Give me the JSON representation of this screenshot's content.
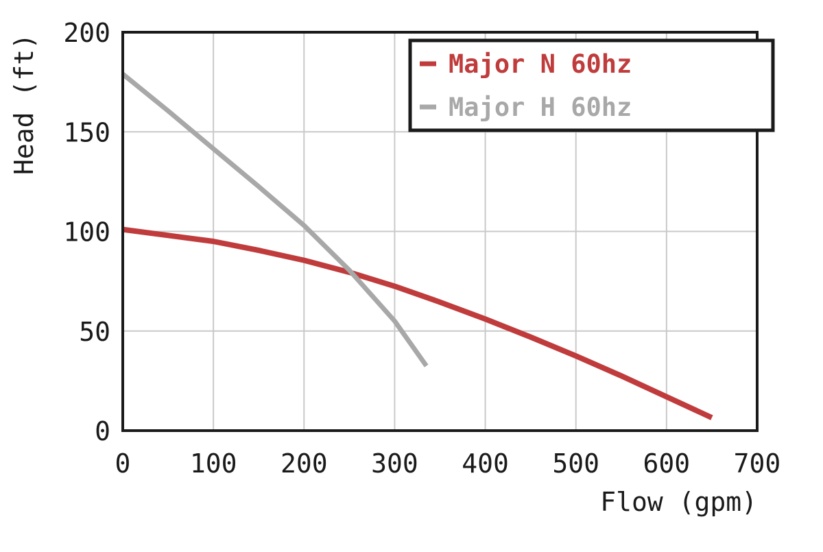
{
  "chart_data": {
    "type": "line",
    "title": "",
    "xlabel": "Flow (gpm)",
    "ylabel": "Head (ft)",
    "xlim": [
      0,
      700
    ],
    "ylim": [
      0,
      200
    ],
    "x_ticks": [
      0,
      100,
      200,
      300,
      400,
      500,
      600,
      700
    ],
    "y_ticks": [
      0,
      50,
      100,
      150,
      200
    ],
    "grid": true,
    "grid_color": "#c9c9c9",
    "axis_color": "#1a1a1a",
    "background_color": "#ffffff",
    "legend_position": "top-right",
    "legend_border_color": "#1a1a1a",
    "legend_background": "#ffffff",
    "series": [
      {
        "name": "Major N 60hz",
        "color": "#c03c3c",
        "points": [
          [
            0,
            101
          ],
          [
            50,
            98
          ],
          [
            100,
            95
          ],
          [
            150,
            90.5
          ],
          [
            200,
            85.5
          ],
          [
            250,
            79.5
          ],
          [
            300,
            72.5
          ],
          [
            350,
            64.5
          ],
          [
            400,
            56
          ],
          [
            450,
            47
          ],
          [
            500,
            37.5
          ],
          [
            550,
            27.5
          ],
          [
            600,
            17
          ],
          [
            650,
            6.5
          ]
        ]
      },
      {
        "name": "Major H 60hz",
        "color": "#a8a8a8",
        "points": [
          [
            0,
            179
          ],
          [
            50,
            160.5
          ],
          [
            100,
            141.5
          ],
          [
            150,
            122.5
          ],
          [
            200,
            103
          ],
          [
            250,
            80.5
          ],
          [
            300,
            55
          ],
          [
            335,
            32.5
          ]
        ]
      }
    ]
  }
}
